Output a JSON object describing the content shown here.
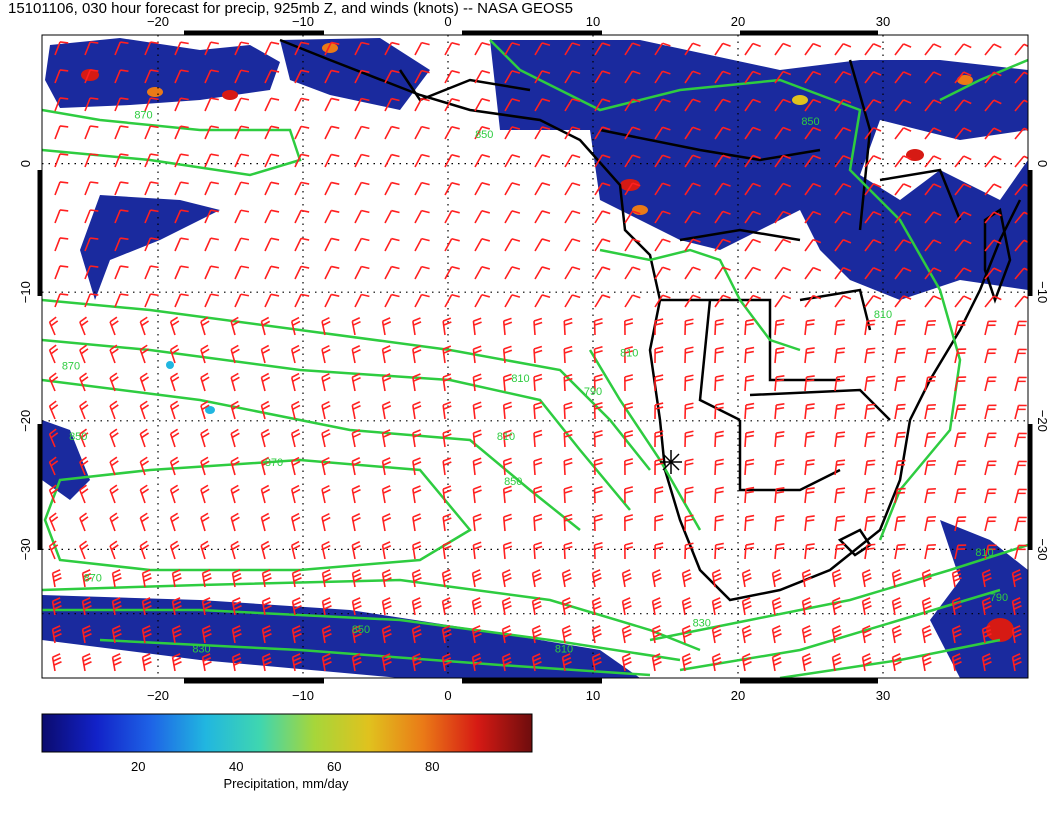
{
  "title": "15101106, 030 hour forecast for precip, 925mb Z, and winds (knots) -- NASA GEOS5",
  "map": {
    "lon_range": [
      -28,
      40
    ],
    "lat_range": [
      -40,
      10
    ],
    "lon_ticks": [
      -20,
      -10,
      0,
      10,
      20,
      30
    ],
    "lat_ticks": [
      0,
      -10,
      -20,
      -30
    ],
    "lon_tick_labels": [
      "−20",
      "−10",
      "0",
      "10",
      "20",
      "30"
    ],
    "lat_tick_labels": [
      "0",
      "−10",
      "−20",
      "−30"
    ],
    "coastline_color": "#000000",
    "contour_color": "#2ecc40",
    "barb_color": "#ff2020"
  },
  "contours": [
    {
      "label": "870",
      "lon": -12,
      "lat": -23.5
    },
    {
      "label": "850",
      "lon": -6,
      "lat": -36.5
    },
    {
      "label": "830",
      "lon": -17,
      "lat": -38
    },
    {
      "label": "870",
      "lon": -24.5,
      "lat": -32.5
    },
    {
      "label": "850",
      "lon": -25.5,
      "lat": -21.5
    },
    {
      "label": "870",
      "lon": -26,
      "lat": -16
    },
    {
      "label": "850",
      "lon": 4.5,
      "lat": -25
    },
    {
      "label": "810",
      "lon": 5,
      "lat": -17
    },
    {
      "label": "810",
      "lon": 4,
      "lat": -21.5
    },
    {
      "label": "790",
      "lon": 10,
      "lat": -18
    },
    {
      "label": "810",
      "lon": 12.5,
      "lat": -15
    },
    {
      "label": "830",
      "lon": 17.5,
      "lat": -36
    },
    {
      "label": "810",
      "lon": 8,
      "lat": -38
    },
    {
      "label": "810",
      "lon": 30,
      "lat": -12
    },
    {
      "label": "810",
      "lon": 37,
      "lat": -30.5
    },
    {
      "label": "790",
      "lon": 38,
      "lat": -34
    },
    {
      "label": "850",
      "lon": 2.5,
      "lat": 2
    },
    {
      "label": "850",
      "lon": 25,
      "lat": 3
    },
    {
      "label": "870",
      "lon": -21,
      "lat": 3.5
    }
  ],
  "colorbar": {
    "label": "Precipitation, mm/day",
    "ticks": [
      20,
      40,
      60,
      80
    ],
    "range": [
      0,
      100
    ],
    "colors": [
      "#0b0b6e",
      "#1222c8",
      "#1e63e6",
      "#21b6e0",
      "#3fd6b0",
      "#a6d63a",
      "#e0c21e",
      "#ea7a17",
      "#d61a14",
      "#6e0d0d"
    ]
  }
}
